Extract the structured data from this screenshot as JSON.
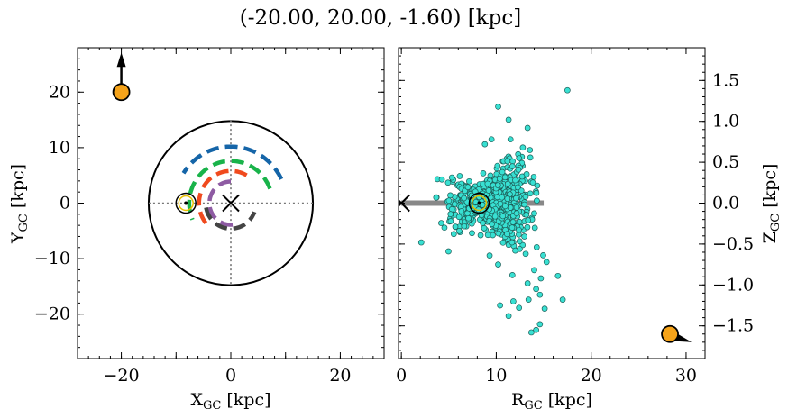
{
  "chart_data": [
    {
      "type": "scatter",
      "title": "(-20.00, 20.00, -1.60) [kpc]",
      "panel": "left",
      "xlabel": "X",
      "xlabel_sub": "GC",
      "xlabel_unit": " [kpc]",
      "ylabel": "Y",
      "ylabel_sub": "GC",
      "ylabel_unit": " [kpc]",
      "xlim": [
        -28,
        28
      ],
      "ylim": [
        -28,
        28
      ],
      "xticks": [
        -20,
        0,
        20
      ],
      "yticks": [
        -20,
        -10,
        0,
        10,
        20
      ],
      "xtick_labels": [
        "−20",
        "0",
        "20"
      ],
      "ytick_labels": [
        "−20",
        "−10",
        "0",
        "10",
        "20"
      ],
      "galaxy_radius": 15,
      "galactic_center": [
        0,
        0
      ],
      "sun": [
        -8.2,
        0
      ],
      "observer": [
        -20,
        20
      ],
      "observer_arrow": [
        0,
        1
      ],
      "observer_color": "#f5a31a",
      "spiral_arms": [
        {
          "color": "#1565a8",
          "radius": 10.2,
          "angle_start": 25,
          "angle_end": 150
        },
        {
          "color": "#19b34a",
          "radius": 7.6,
          "angle_start": 20,
          "angle_end": 205
        },
        {
          "color": "#f04a1e",
          "radius": 5.8,
          "angle_start": 60,
          "angle_end": 220
        },
        {
          "color": "#8e5ba3",
          "radius": 3.9,
          "angle_start": 90,
          "angle_end": 290
        },
        {
          "color": "#444444",
          "radius": 4.6,
          "angle_start": 190,
          "angle_end": 340
        }
      ]
    },
    {
      "type": "scatter",
      "panel": "right",
      "xlabel": "R",
      "xlabel_sub": "GC",
      "xlabel_unit": " [kpc]",
      "ylabel": "Z",
      "ylabel_sub": "GC",
      "ylabel_unit": " [kpc]",
      "xlim": [
        -0.3,
        32
      ],
      "ylim": [
        -1.9,
        1.9
      ],
      "xticks": [
        0,
        10,
        20,
        30
      ],
      "yticks": [
        -1.5,
        -1.0,
        -0.5,
        0.0,
        0.5,
        1.0,
        1.5
      ],
      "xtick_labels": [
        "0",
        "10",
        "20",
        "30"
      ],
      "ytick_labels": [
        "−1.5",
        "−1.0",
        "−0.5",
        "0.0",
        "0.5",
        "1.0",
        "1.5"
      ],
      "disk_extent": [
        0,
        15
      ],
      "galactic_center": [
        0,
        0
      ],
      "sun": [
        8.2,
        0
      ],
      "observer": [
        28.3,
        -1.6
      ],
      "point_color": "#38e0d2",
      "n_points": 900,
      "cloud_center": [
        9.5,
        0.0
      ],
      "outliers": [
        [
          17.5,
          1.38
        ],
        [
          10.2,
          1.18
        ],
        [
          11.3,
          1.02
        ],
        [
          13.3,
          0.92
        ],
        [
          9.5,
          0.78
        ],
        [
          11.5,
          0.78
        ],
        [
          8.8,
          0.72
        ],
        [
          12.8,
          0.68
        ],
        [
          12.4,
          0.55
        ],
        [
          11.7,
          0.45
        ],
        [
          2.1,
          -0.48
        ],
        [
          5.2,
          -0.22
        ],
        [
          6.1,
          -0.34
        ],
        [
          9.3,
          -0.64
        ],
        [
          10.2,
          -0.75
        ],
        [
          11.7,
          -0.88
        ],
        [
          15.3,
          -0.72
        ],
        [
          14.7,
          -0.92
        ],
        [
          13.3,
          -0.98
        ],
        [
          14.2,
          -1.05
        ],
        [
          16.5,
          -0.89
        ],
        [
          17.0,
          -1.18
        ],
        [
          14.6,
          -1.12
        ],
        [
          13.4,
          -1.18
        ],
        [
          10.4,
          -1.25
        ],
        [
          11.8,
          -1.2
        ],
        [
          12.4,
          -1.28
        ],
        [
          15.1,
          -1.29
        ],
        [
          11.3,
          -1.38
        ],
        [
          14.6,
          -1.48
        ],
        [
          14.2,
          -1.55
        ],
        [
          13.7,
          -1.58
        ],
        [
          12.0,
          -0.58
        ],
        [
          13.1,
          -0.62
        ],
        [
          12.0,
          0.28
        ]
      ]
    }
  ]
}
